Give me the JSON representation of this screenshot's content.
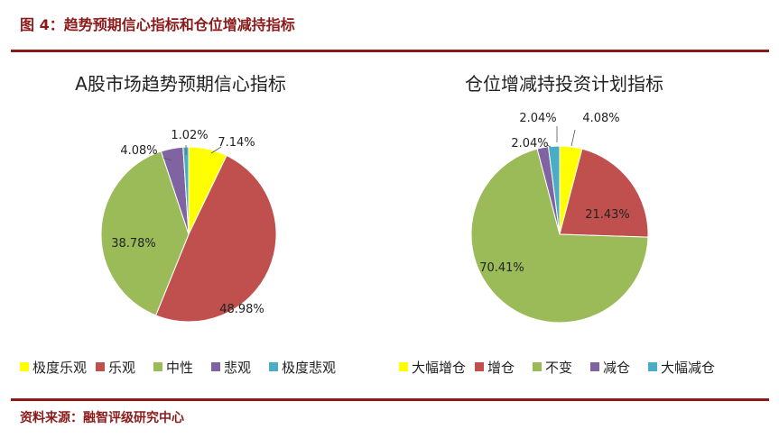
{
  "figure": {
    "title": "图 4：趋势预期信心指标和仓位增减持指标",
    "source": "资料来源：融智评级研究中心"
  },
  "chart_data": [
    {
      "type": "pie",
      "title": "A股市场趋势预期信心指标",
      "legend_position": "bottom",
      "slices": [
        {
          "label": "极度乐观",
          "value": 7.14,
          "display": "7.14%",
          "color": "#ffff00"
        },
        {
          "label": "乐观",
          "value": 48.98,
          "display": "48.98%",
          "color": "#c0504d"
        },
        {
          "label": "中性",
          "value": 38.78,
          "display": "38.78%",
          "color": "#9bbb59"
        },
        {
          "label": "悲观",
          "value": 4.08,
          "display": "4.08%",
          "color": "#8064a2"
        },
        {
          "label": "极度悲观",
          "value": 1.02,
          "display": "1.02%",
          "color": "#4bacc6"
        }
      ]
    },
    {
      "type": "pie",
      "title": "仓位增减持投资计划指标",
      "legend_position": "bottom",
      "slices": [
        {
          "label": "大幅增仓",
          "value": 4.08,
          "display": "4.08%",
          "color": "#ffff00"
        },
        {
          "label": "增仓",
          "value": 21.43,
          "display": "21.43%",
          "color": "#c0504d"
        },
        {
          "label": "不变",
          "value": 70.41,
          "display": "70.41%",
          "color": "#9bbb59"
        },
        {
          "label": "减仓",
          "value": 2.04,
          "display": "2.04%",
          "color": "#8064a2"
        },
        {
          "label": "大幅减仓",
          "value": 2.04,
          "display": "2.04%",
          "color": "#4bacc6"
        }
      ]
    }
  ]
}
